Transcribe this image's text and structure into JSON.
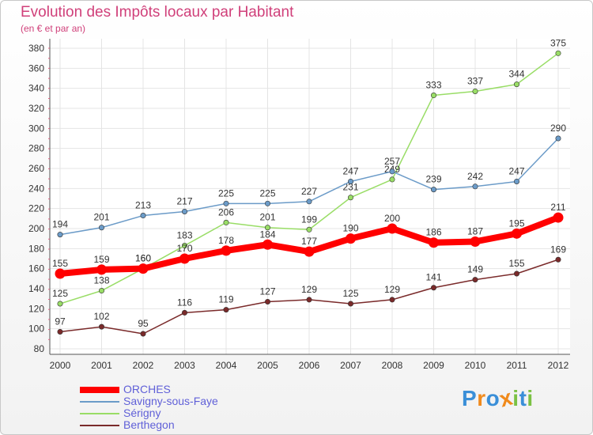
{
  "header": {
    "title": "Evolution des Impôts locaux par Habitant",
    "subtitle": "(en € et par an)"
  },
  "chart_data": {
    "type": "line",
    "title": "Evolution des Impôts locaux par Habitant",
    "subtitle": "(en € et par an)",
    "xlabel": "",
    "ylabel": "",
    "categories": [
      "2000",
      "2001",
      "2002",
      "2003",
      "2004",
      "2005",
      "2006",
      "2007",
      "2008",
      "2009",
      "2010",
      "2011",
      "2012"
    ],
    "ylim": [
      80,
      380
    ],
    "yticks": [
      80,
      100,
      120,
      140,
      160,
      180,
      200,
      220,
      240,
      260,
      280,
      300,
      320,
      340,
      360,
      380
    ],
    "grid": true,
    "legend_position": "bottom-left",
    "series": [
      {
        "name": "ORCHES",
        "color": "#ff0000",
        "values": [
          155,
          159,
          160,
          170,
          178,
          184,
          177,
          190,
          200,
          186,
          187,
          195,
          211
        ]
      },
      {
        "name": "Savigny-sous-Faye",
        "color": "#6b9bc8",
        "values": [
          194,
          201,
          213,
          217,
          225,
          225,
          227,
          247,
          257,
          239,
          242,
          247,
          290
        ]
      },
      {
        "name": "Sérigny",
        "color": "#99dd66",
        "values": [
          125,
          138,
          160,
          183,
          206,
          201,
          199,
          231,
          249,
          333,
          337,
          344,
          375
        ]
      },
      {
        "name": "Berthegon",
        "color": "#7a2a2a",
        "values": [
          97,
          102,
          95,
          116,
          119,
          127,
          129,
          125,
          129,
          141,
          149,
          155,
          169
        ]
      }
    ]
  },
  "logo": {
    "letters": [
      "P",
      "r",
      "o",
      "x",
      "i",
      "t",
      "i"
    ],
    "colors": [
      "#3a8fd8",
      "#f08a1c",
      "#3a8fd8",
      "#f08a1c",
      "#7ac143",
      "#3a8fd8",
      "#7ac143"
    ]
  }
}
